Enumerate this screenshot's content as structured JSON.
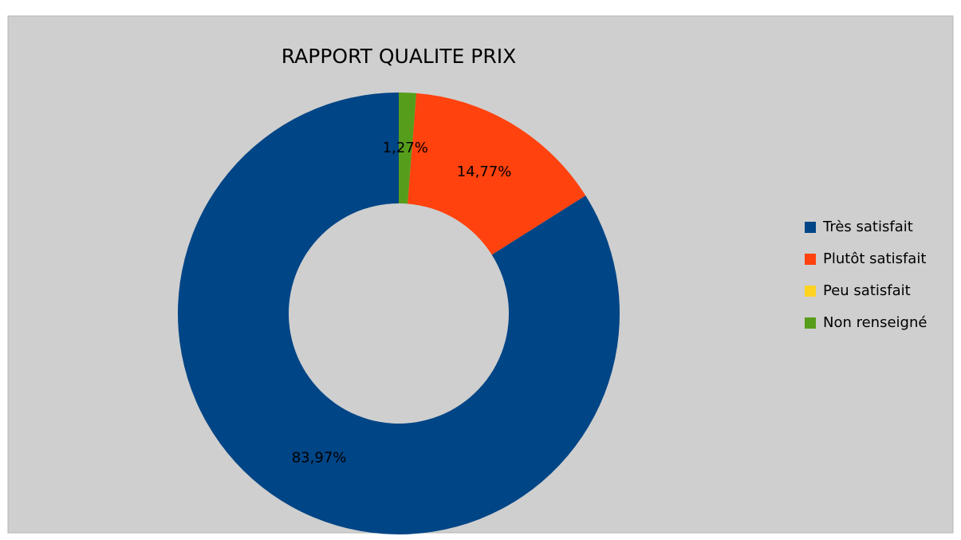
{
  "chart_data": {
    "type": "donut",
    "title": "RAPPORT QUALITE PRIX",
    "categories": [
      "Très satisfait",
      "Plutôt satisfait",
      "Peu satisfait",
      "Non renseigné"
    ],
    "values": [
      83.97,
      14.77,
      0,
      1.27
    ],
    "value_labels": [
      "83,97%",
      "14,77%",
      null,
      "1,27%"
    ],
    "colors": [
      "#004586",
      "#ff420e",
      "#ffd320",
      "#579d1c"
    ],
    "legend": "right"
  }
}
